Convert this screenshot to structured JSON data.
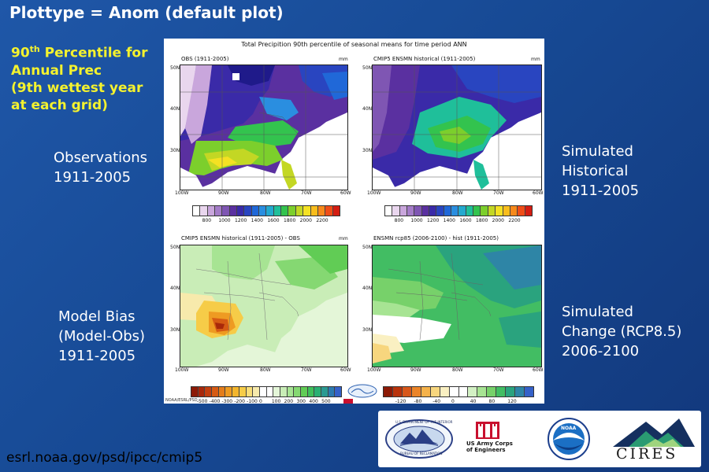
{
  "slide": {
    "title": "Plottype = Anom (default plot)",
    "subtitle": {
      "line1_main": "90",
      "line1_sup": "th",
      "line1_rest": " Percentile for",
      "line2": "Annual Prec",
      "line3": " (9th wettest year",
      "line4": "at each grid)"
    },
    "labels": {
      "obs": [
        "Observations",
        "1911-2005"
      ],
      "hist": [
        "Simulated",
        "Historical",
        "1911-2005"
      ],
      "bias": [
        "Model Bias",
        "(Model-Obs)",
        "1911-2005"
      ],
      "change": [
        "Simulated",
        "Change (RCP8.5)",
        "2006-2100"
      ]
    },
    "url": "esrl.noaa.gov/psd/ipcc/cmip5"
  },
  "figure": {
    "title": "Total Precipition 90th percentile of seasonal means for time period ANN",
    "unit": "mm",
    "panels": [
      {
        "title": "OBS (1911-2005)"
      },
      {
        "title": "CMIP5 ENSMN historical (1911-2005)"
      },
      {
        "title": "CMIP5 ENSMN historical (1911-2005) - OBS"
      },
      {
        "title": "ENSMN rcp85 (2006-2100) - hist (1911-2005)"
      }
    ],
    "lat_ticks": [
      "50N",
      "40N",
      "30N"
    ],
    "lon_ticks": [
      "100W",
      "90W",
      "80W",
      "70W",
      "60W"
    ],
    "colorbar_top": {
      "labels": [
        "800",
        "1000",
        "1200",
        "1400",
        "1600",
        "1800",
        "2000",
        "2200"
      ],
      "colors": [
        "#ffffff",
        "#e9d6ee",
        "#c9a6dc",
        "#a47cc8",
        "#7f56b3",
        "#5a30a0",
        "#3a2aa8",
        "#2945c0",
        "#2068d8",
        "#2a8ee0",
        "#23a9cf",
        "#1fbf9a",
        "#33c34e",
        "#7ccf2c",
        "#c3d724",
        "#f4e123",
        "#f9bd1c",
        "#f7891a",
        "#ef4d17",
        "#d41d12"
      ]
    },
    "colorbar_bias": {
      "labels": [
        "-500",
        "-400",
        "-300",
        "-200",
        "-100",
        "0",
        "100",
        "200",
        "300",
        "400",
        "500"
      ],
      "colors": [
        "#8c1a06",
        "#a8280a",
        "#c23f0f",
        "#d65b14",
        "#e47d1a",
        "#ee9b22",
        "#f3b52c",
        "#f6cc48",
        "#f8de7a",
        "#f7eaac",
        "#ffffff",
        "#ffffff",
        "#e4f6d8",
        "#c9edb7",
        "#a7e493",
        "#85d872",
        "#61cc55",
        "#3fbf5a",
        "#2aaf73",
        "#2a9a92",
        "#2c7ab0",
        "#3561c8"
      ]
    },
    "colorbar_change": {
      "labels": [
        "-120",
        "-80",
        "-40",
        "0",
        "40",
        "80",
        "120"
      ],
      "colors": [
        "#8c1a06",
        "#b8330c",
        "#d7571a",
        "#eb8428",
        "#f5b24a",
        "#f7d67e",
        "#faf0c2",
        "#ffffff",
        "#ffffff",
        "#d3f1c4",
        "#a7e493",
        "#77d16a",
        "#42bd63",
        "#2aa37e",
        "#2e85a6",
        "#3561c8"
      ]
    },
    "footer_left": "NOAA/ESRL/PSD"
  },
  "logos": {
    "doi_text": "U.S. DEPARTMENT OF THE INTERIOR",
    "reclamation_text": "BUREAU OF RECLAMATION",
    "usace_text": [
      "US Army Corps",
      "of Engineers"
    ],
    "noaa_text": "NOAA",
    "cires_text": "CIRES"
  }
}
